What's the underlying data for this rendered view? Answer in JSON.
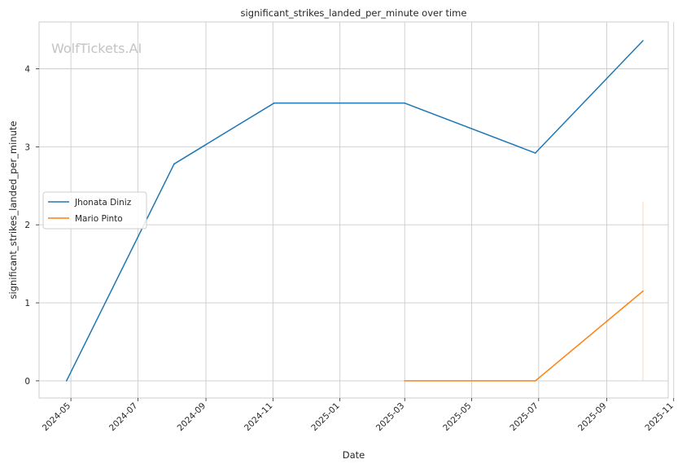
{
  "chart_data": {
    "type": "line",
    "title": "significant_strikes_landed_per_minute over time",
    "xlabel": "Date",
    "ylabel": "significant_strikes_landed_per_minute",
    "xlim": [
      "2024-04-02",
      "2025-10-27"
    ],
    "ylim": [
      -0.22,
      4.6
    ],
    "x_ticks": [
      "2024-05",
      "2024-07",
      "2024-09",
      "2024-11",
      "2025-01",
      "2025-03",
      "2025-05",
      "2025-07",
      "2025-09",
      "2025-11"
    ],
    "y_ticks": [
      0,
      1,
      2,
      3,
      4
    ],
    "grid": true,
    "legend_position": "center-left",
    "series": [
      {
        "name": "Jhonata Diniz",
        "color": "#1f77b4",
        "points": [
          {
            "x": "2024-04-27",
            "y": 0.0
          },
          {
            "x": "2024-08-03",
            "y": 2.78
          },
          {
            "x": "2024-11-02",
            "y": 3.56
          },
          {
            "x": "2025-03-01",
            "y": 3.56
          },
          {
            "x": "2025-06-28",
            "y": 2.92
          },
          {
            "x": "2025-10-04",
            "y": 4.36
          }
        ]
      },
      {
        "name": "Mario Pinto",
        "color": "#ff7f0e",
        "points": [
          {
            "x": "2025-03-01",
            "y": 0.0
          },
          {
            "x": "2025-06-28",
            "y": 0.0
          },
          {
            "x": "2025-10-04",
            "y": 1.15
          }
        ],
        "error_band": {
          "x": "2025-10-04",
          "low": 0.0,
          "high": 2.3
        }
      }
    ]
  },
  "watermark": "WolfTickets.AI"
}
